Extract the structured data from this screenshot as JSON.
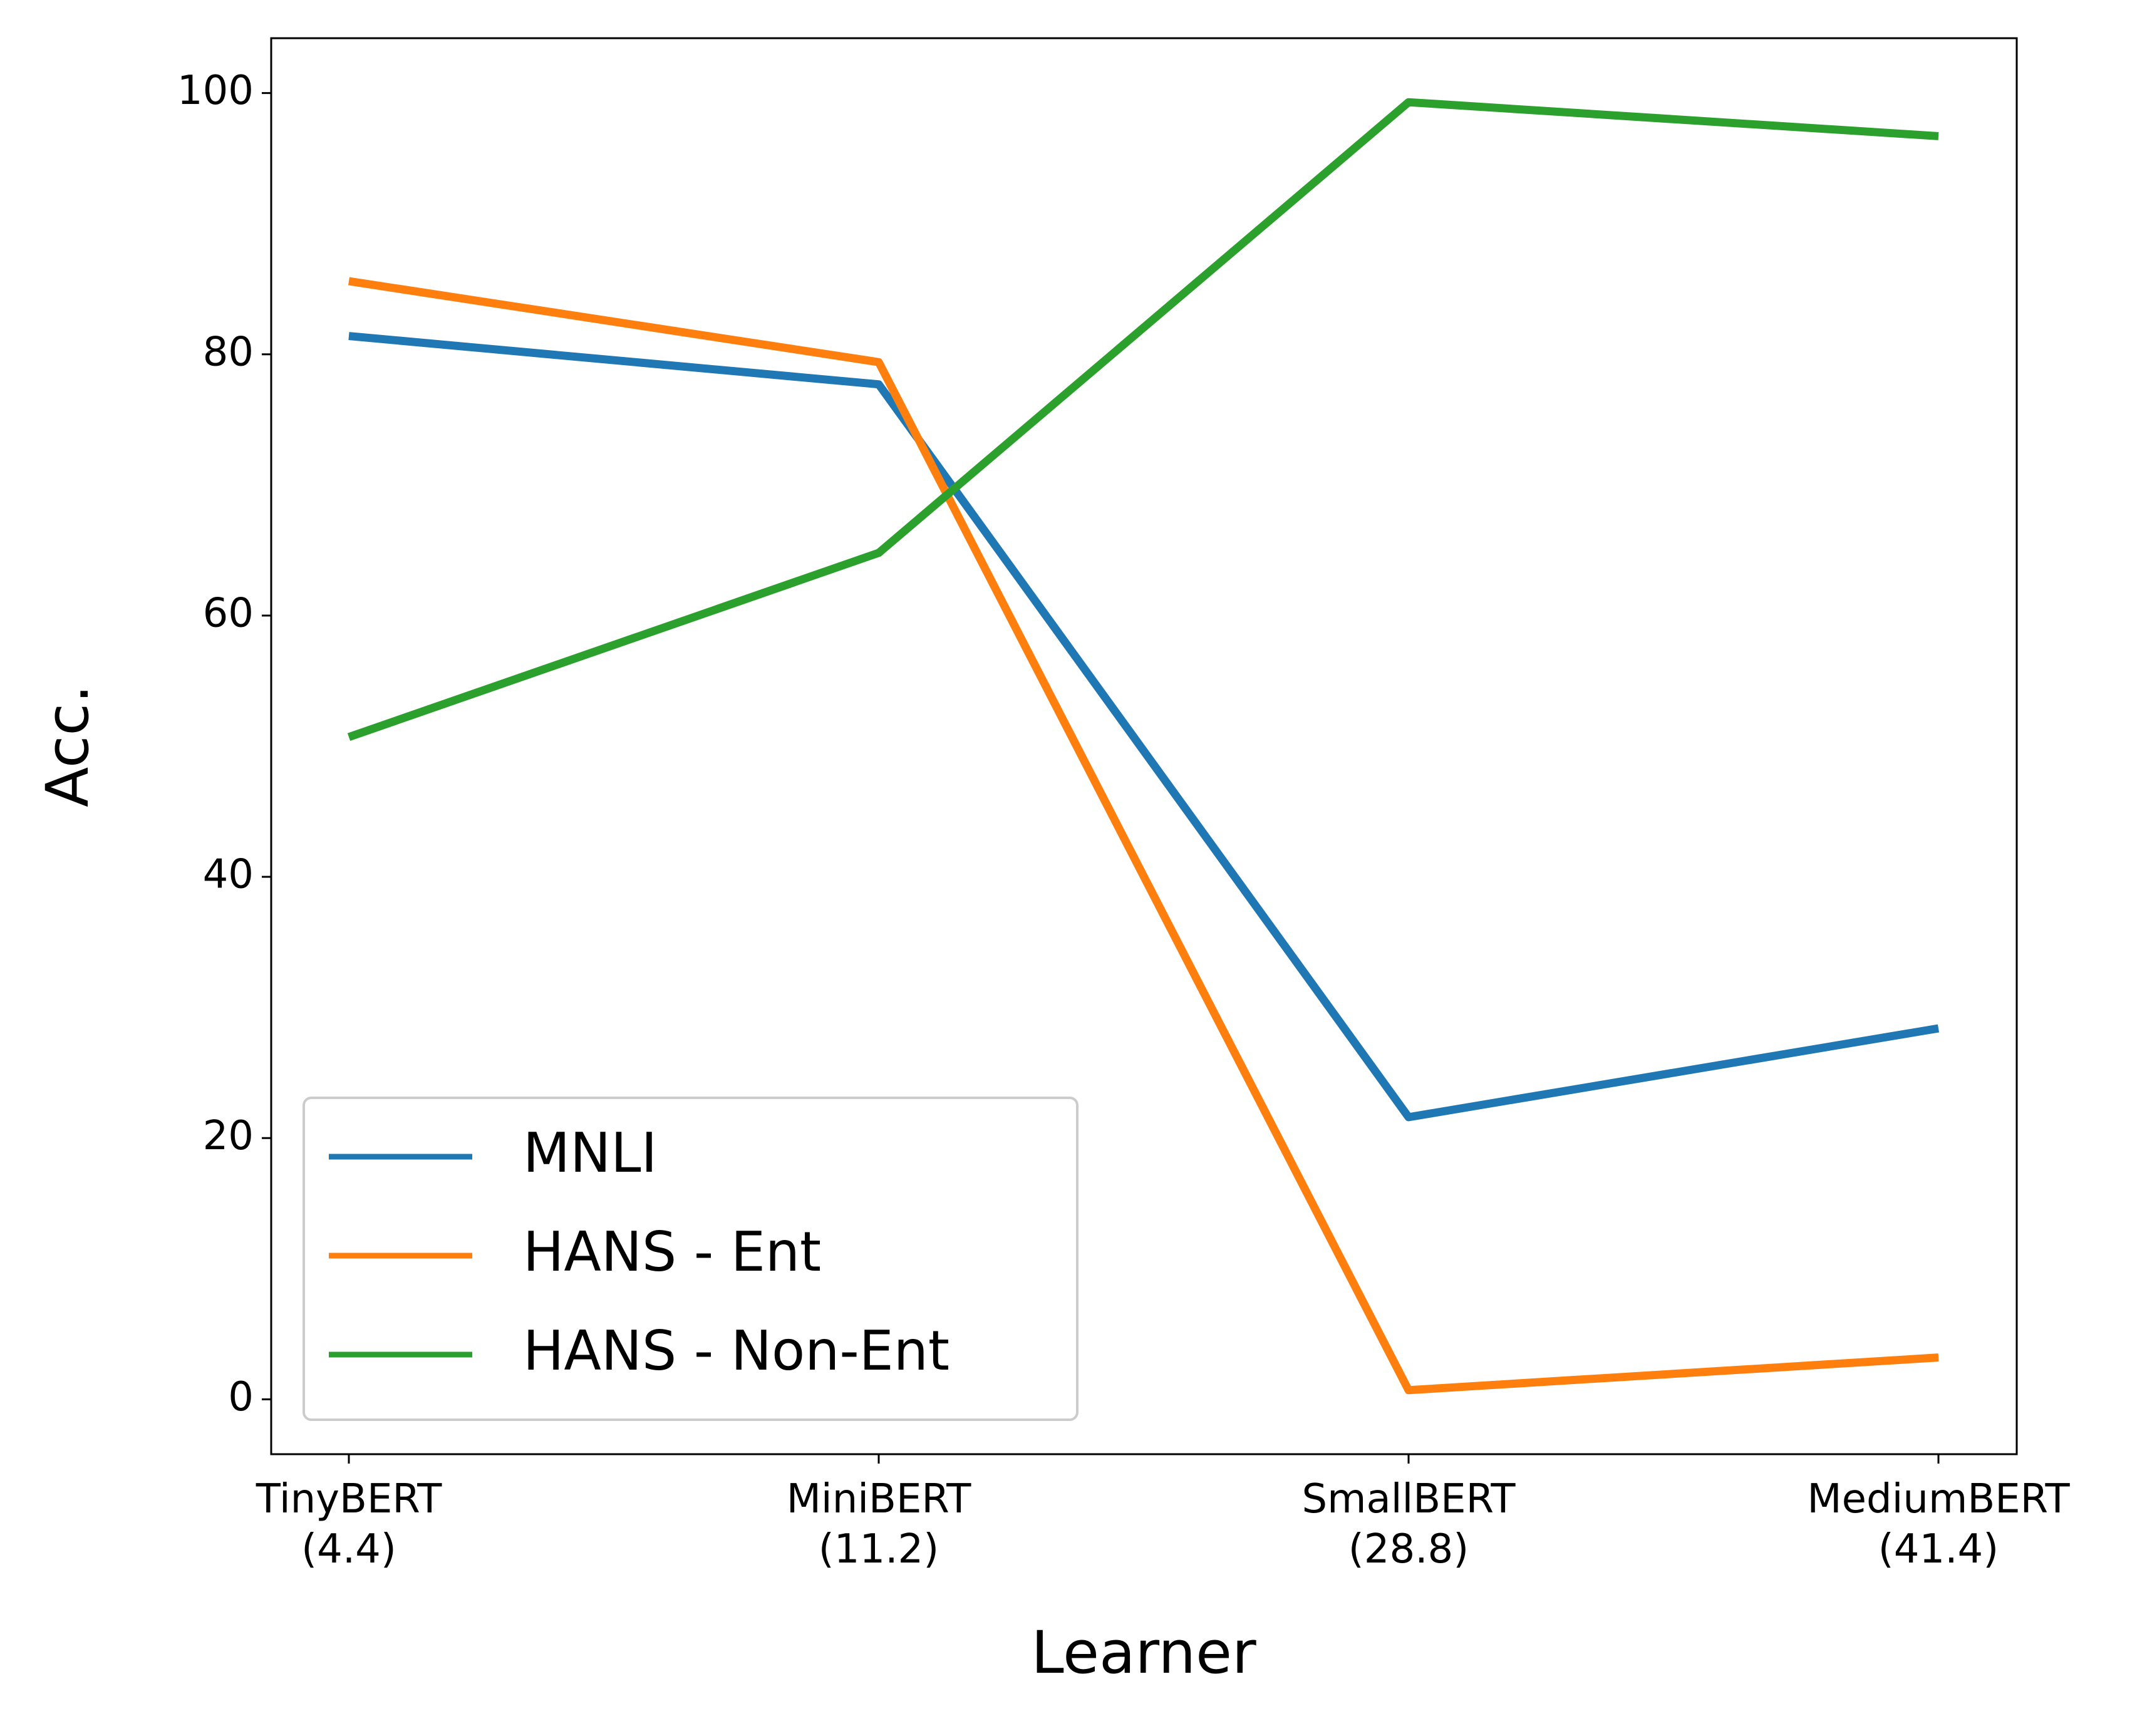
{
  "chart_data": {
    "type": "line",
    "x_label": "Learner",
    "y_label": "Acc.",
    "categories": [
      "TinyBERT\n(4.4)",
      "MiniBERT\n(11.2)",
      "SmallBERT\n(28.8)",
      "MediumBERT\n(41.4)"
    ],
    "series": [
      {
        "name": "MNLI",
        "color": "#1f77b4",
        "values": [
          81.4,
          77.7,
          21.6,
          28.4
        ]
      },
      {
        "name": "HANS - Ent",
        "color": "#ff7f0e",
        "values": [
          85.6,
          79.4,
          0.7,
          3.2
        ]
      },
      {
        "name": "HANS - Non-Ent",
        "color": "#2ca02c",
        "values": [
          50.7,
          64.8,
          99.3,
          96.7
        ]
      }
    ],
    "ylim": [
      -4.2,
      104.2
    ],
    "yticks": [
      0,
      20,
      40,
      60,
      80,
      100
    ],
    "legend": "lower left",
    "grid": false
  }
}
